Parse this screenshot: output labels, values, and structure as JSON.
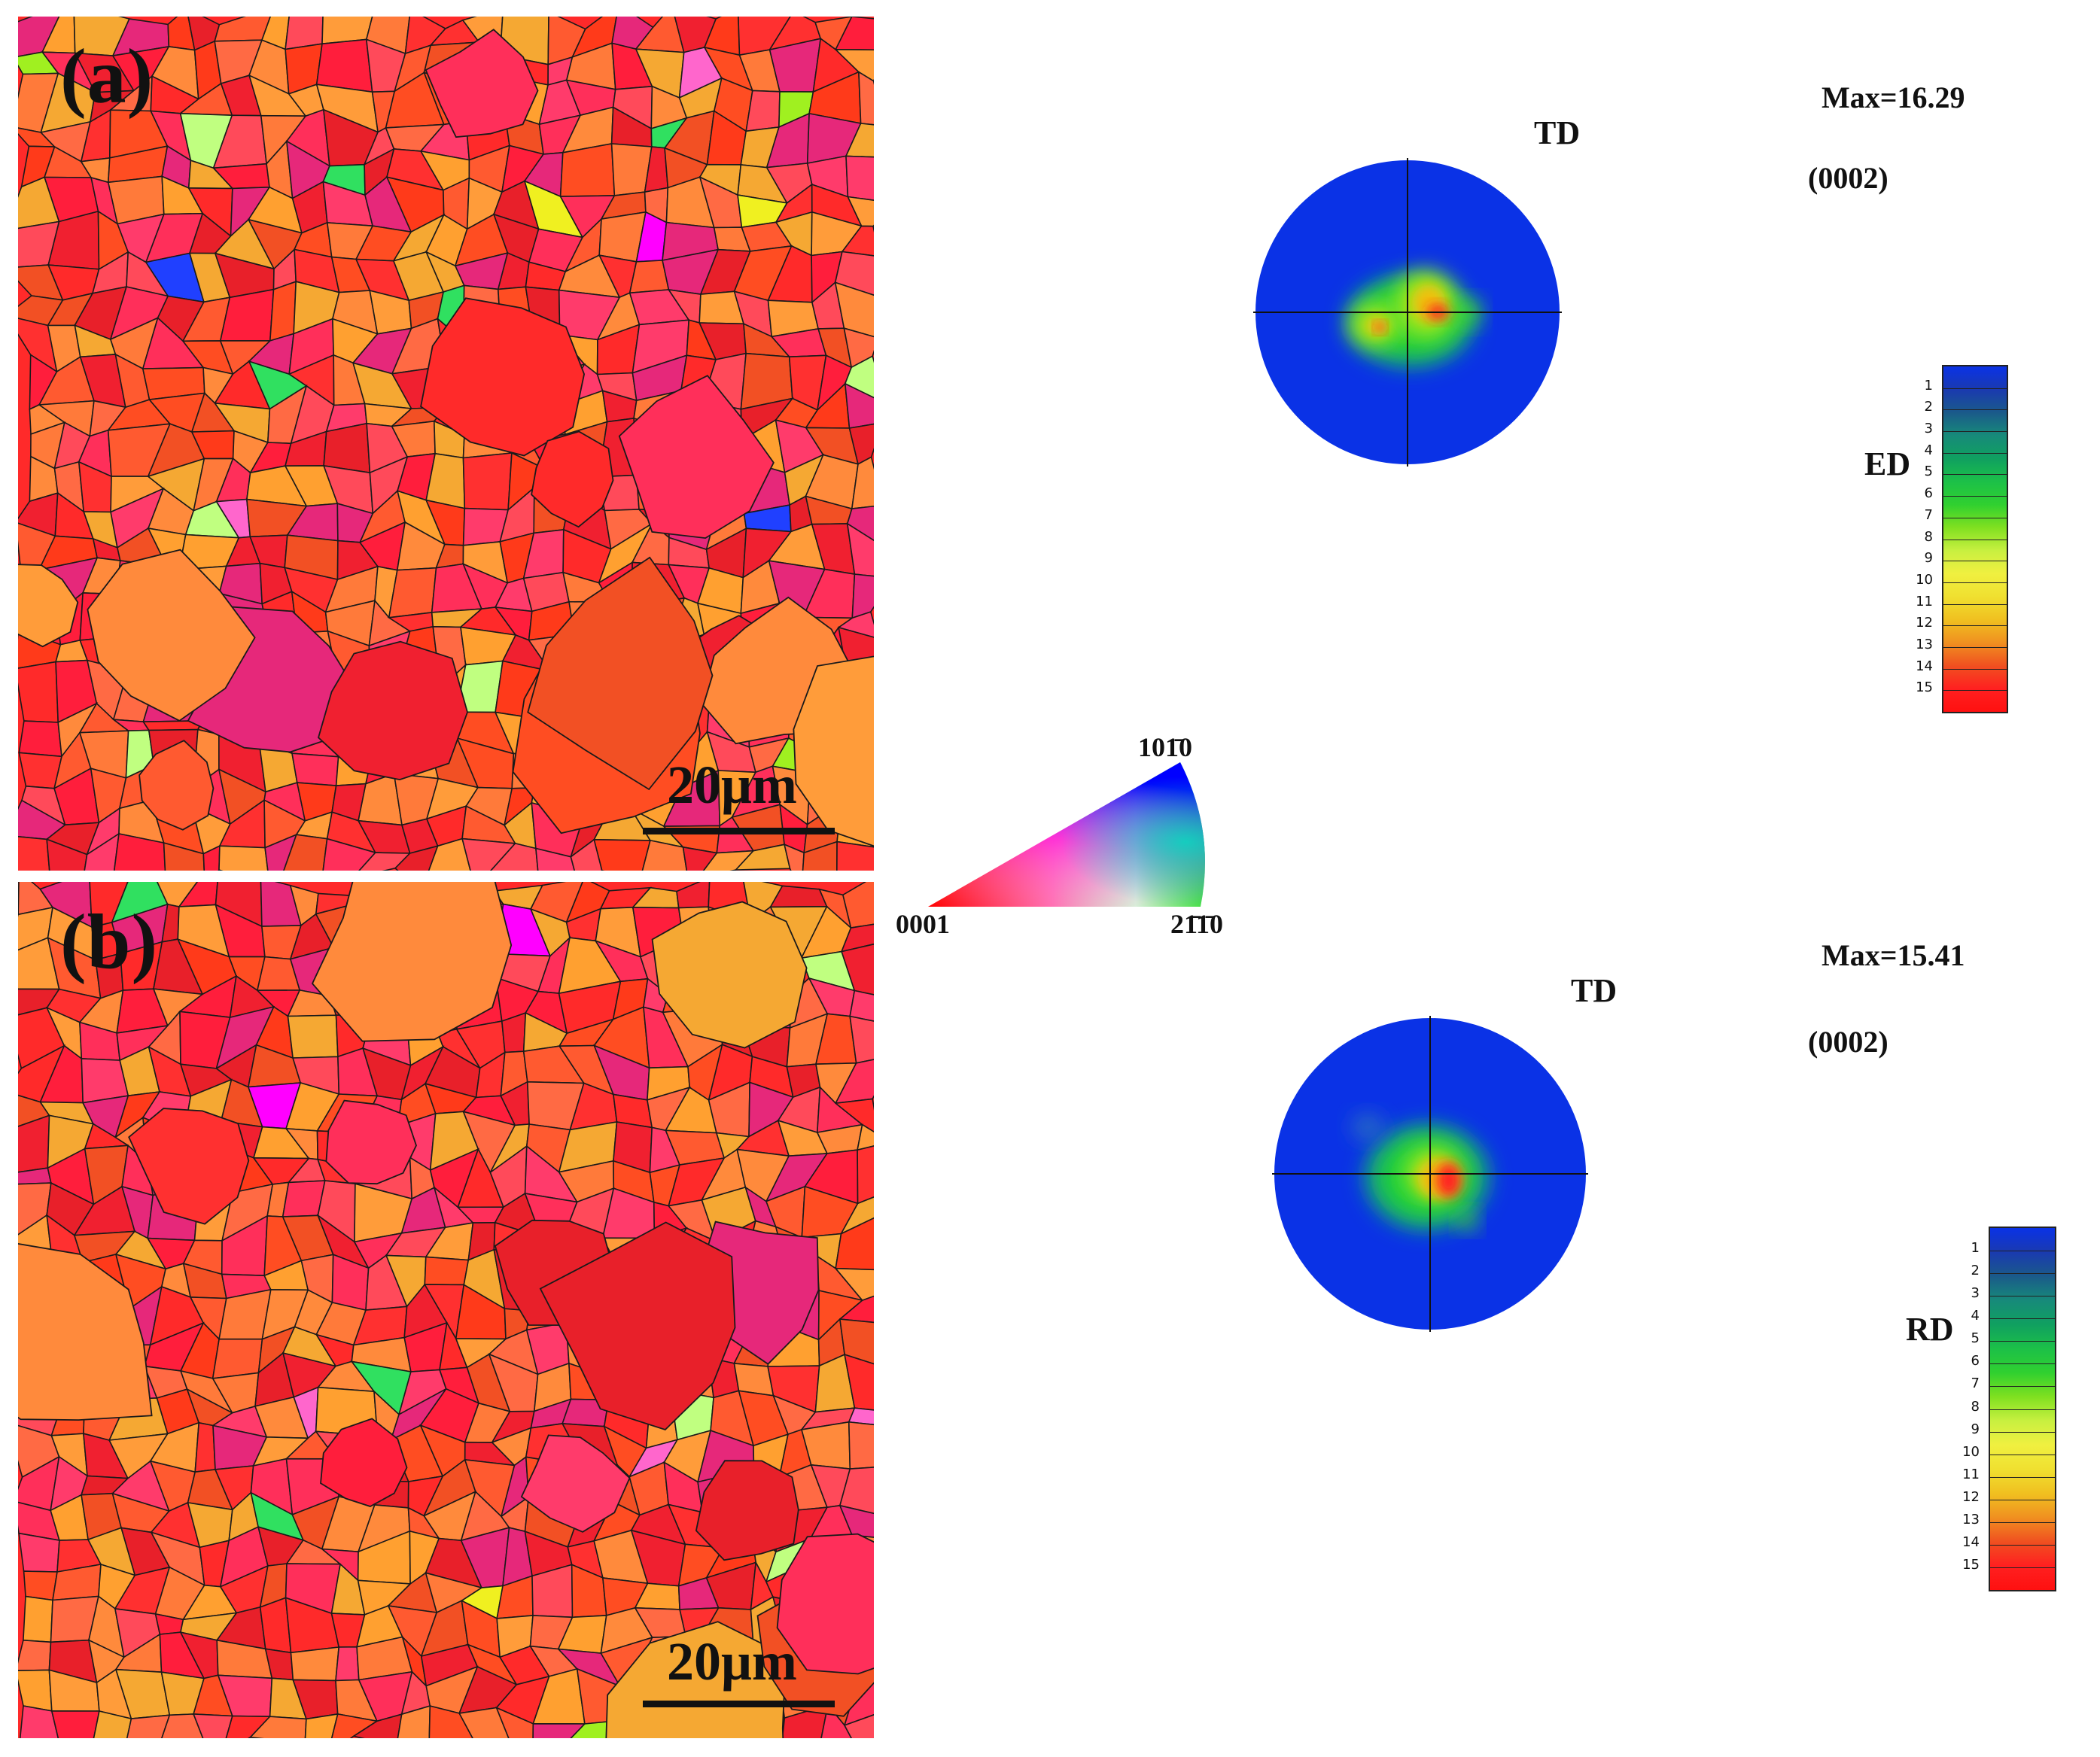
{
  "panels": [
    {
      "label": "(a)",
      "scale_bar": "20μm"
    },
    {
      "label": "(b)",
      "scale_bar": "20μm"
    }
  ],
  "ipf_legend": {
    "corner_basal": "0001",
    "corner_prism1": "101̄0",
    "corner_prism2": "21̄1̄0"
  },
  "pole_figures": [
    {
      "id": "pf-a",
      "max_label": "Max=16.29",
      "plane": "(0002)",
      "top_axis": "TD",
      "right_axis": "ED",
      "colorbar_ticks": [
        "1",
        "2",
        "3",
        "4",
        "5",
        "6",
        "7",
        "8",
        "9",
        "10",
        "11",
        "12",
        "13",
        "14",
        "15"
      ]
    },
    {
      "id": "pf-b",
      "max_label": "Max=15.41",
      "plane": "(0002)",
      "top_axis": "TD",
      "right_axis": "RD",
      "colorbar_ticks": [
        "1",
        "2",
        "3",
        "4",
        "5",
        "6",
        "7",
        "8",
        "9",
        "10",
        "11",
        "12",
        "13",
        "14",
        "15"
      ]
    }
  ],
  "colors": {
    "pf_background": "#0a32e6",
    "grain_boundary": "#1a1a1a"
  }
}
